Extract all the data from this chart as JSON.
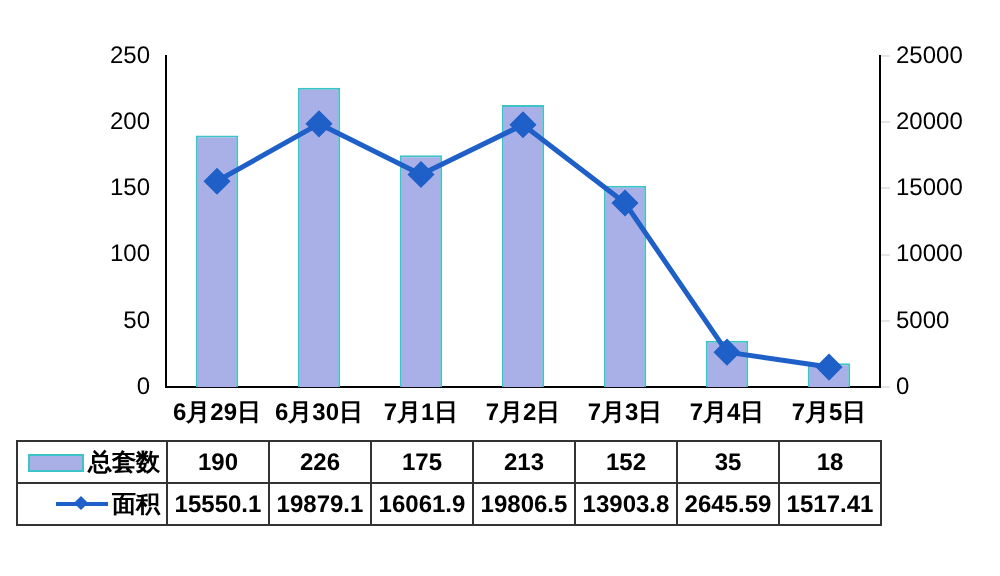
{
  "chart_data": {
    "type": "bar",
    "categories": [
      "6月29日",
      "6月30日",
      "7月1日",
      "7月2日",
      "7月3日",
      "7月4日",
      "7月5日"
    ],
    "series": [
      {
        "name": "总套数",
        "color": "#a9b0e8",
        "values": [
          190,
          226,
          175,
          213,
          152,
          35,
          18
        ]
      },
      {
        "name": "面积",
        "type": "line",
        "axis": "y2",
        "color": "#1f5fc8",
        "values": [
          15550.1,
          19879.1,
          16061.9,
          19806.5,
          13903.8,
          2645.59,
          1517.41
        ]
      }
    ],
    "ylim": [
      0,
      250
    ],
    "yticks": [
      0,
      50,
      100,
      150,
      200,
      250
    ],
    "y2lim": [
      0,
      25000
    ],
    "y2ticks": [
      0,
      5000,
      10000,
      15000,
      20000,
      25000
    ],
    "marker": "diamond",
    "line_style": "solid",
    "grid": false,
    "legend": "bottom",
    "data_labels": true
  }
}
